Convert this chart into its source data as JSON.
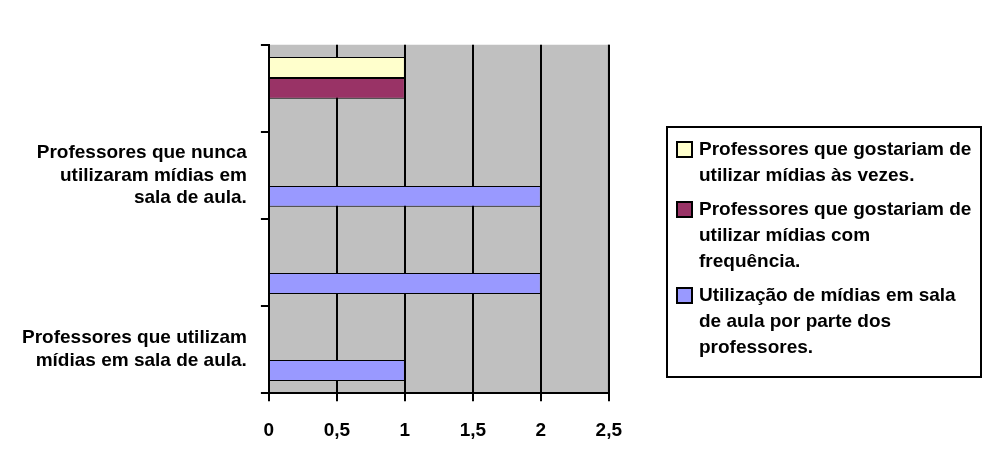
{
  "chart_data": {
    "type": "bar",
    "orientation": "horizontal",
    "categories": [
      null,
      "Professores que nunca utilizaram mídias em sala de aula.",
      null,
      "Professores que utilizam mídias em sala de aula."
    ],
    "series": [
      {
        "name": "Professores que gostariam de utilizar mídias às vezes.",
        "color": "#ffffcc",
        "values": [
          1,
          null,
          null,
          null
        ]
      },
      {
        "name": "Professores que gostariam de utilizar mídias com frequência.",
        "color": "#993366",
        "values": [
          1,
          null,
          null,
          null
        ]
      },
      {
        "name": "Utilização de mídias em sala de aula por parte dos professores.",
        "color": "#9999ff",
        "values": [
          null,
          2,
          2,
          1
        ]
      }
    ],
    "xlim": [
      0,
      2.5
    ],
    "xticks": [
      0,
      {
        "value": 0.5,
        "label": "0,5"
      },
      1,
      {
        "value": 1.5,
        "label": "1,5"
      },
      2,
      {
        "value": 2.5,
        "label": "2,5"
      }
    ],
    "grid": "x",
    "legend": "right"
  }
}
